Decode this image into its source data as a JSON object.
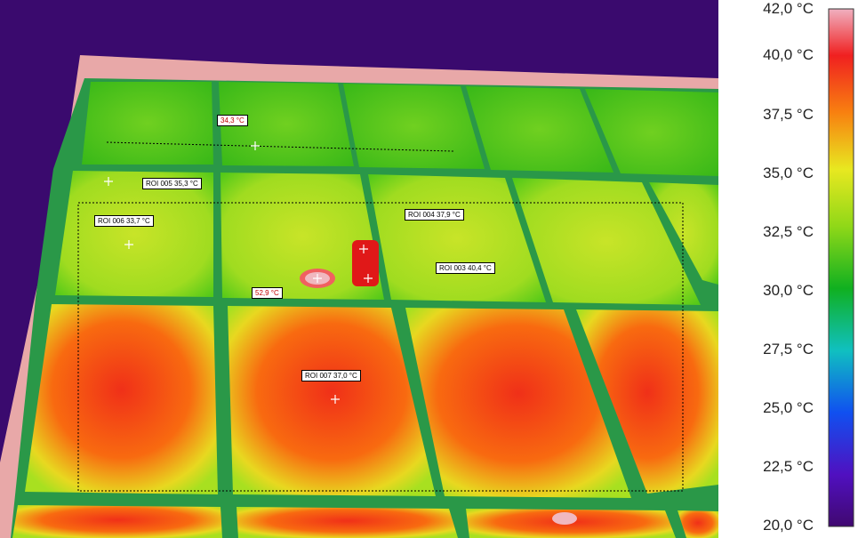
{
  "scale": {
    "labels": [
      "42,0 °C",
      "40,0 °C",
      "37,5 °C",
      "35,0 °C",
      "32,5 °C",
      "30,0 °C",
      "27,5 °C",
      "25,0 °C",
      "22,5 °C",
      "20,0 °C"
    ]
  },
  "annotations": [
    "34,3 °C",
    "ROI 005 35,3 °C",
    "ROI 006 33,7 °C",
    "ROI 004 37,9 °C",
    "ROI 003 40,4 °C",
    "52,9 °C",
    "ROI 007 37,0 °C"
  ]
}
